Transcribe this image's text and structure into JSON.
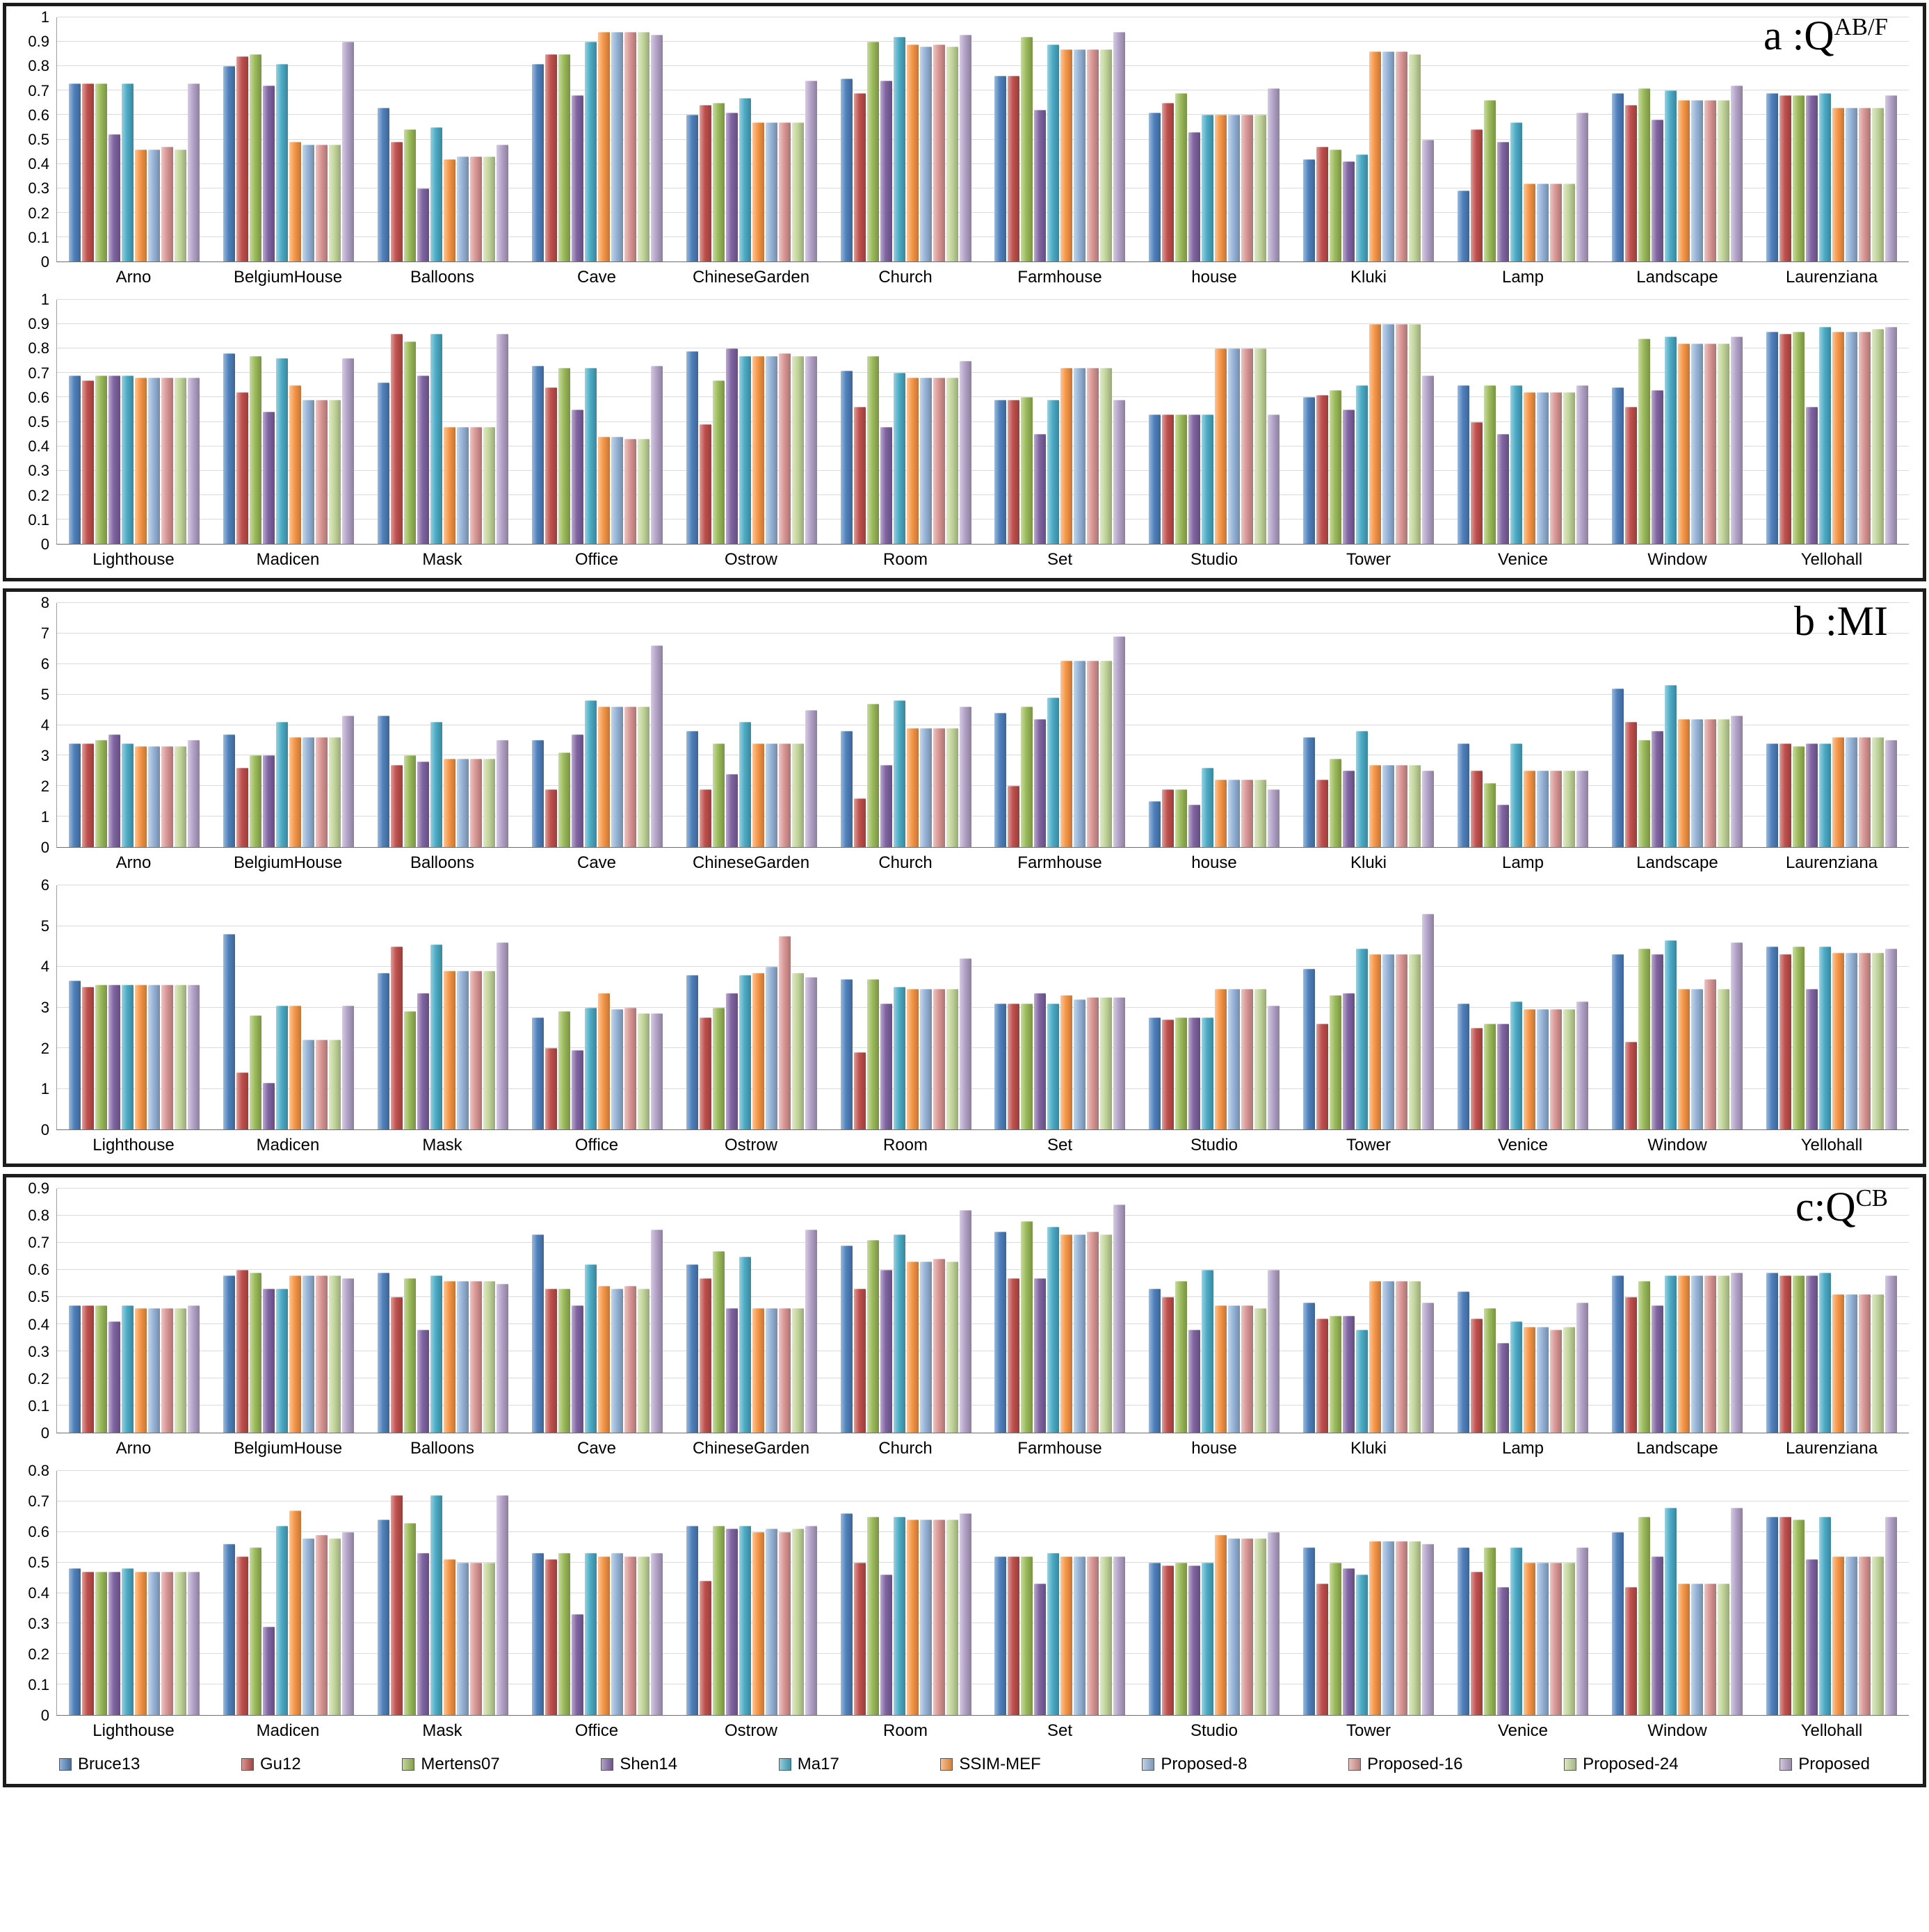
{
  "panels": [
    {
      "title_prefix": "a :Q",
      "title_sup": "AB/F"
    },
    {
      "title_prefix": "b :MI",
      "title_sup": ""
    },
    {
      "title_prefix": "c:Q",
      "title_sup": "CB"
    }
  ],
  "chart_data": {
    "type": "bar",
    "legend_position": "bottom",
    "grid": true,
    "series": [
      {
        "name": "Bruce13",
        "color": "#4F81BD"
      },
      {
        "name": "Gu12",
        "color": "#C0504D"
      },
      {
        "name": "Mertens07",
        "color": "#9BBB59"
      },
      {
        "name": "Shen14",
        "color": "#8064A2"
      },
      {
        "name": "Ma17",
        "color": "#4BACC6"
      },
      {
        "name": "SSIM-MEF",
        "color": "#F79646"
      },
      {
        "name": "Proposed-8",
        "color": "#95B3D7"
      },
      {
        "name": "Proposed-16",
        "color": "#D99694"
      },
      {
        "name": "Proposed-24",
        "color": "#C3D69B"
      },
      {
        "name": "Proposed",
        "color": "#B3A2C7"
      }
    ],
    "charts": [
      {
        "panel": "a",
        "row": 1,
        "metric": "QAB/F",
        "ymax": 1,
        "ystep": 0.1,
        "categories": [
          "Arno",
          "BelgiumHouse",
          "Balloons",
          "Cave",
          "ChineseGarden",
          "Church",
          "Farmhouse",
          "house",
          "Kluki",
          "Lamp",
          "Landscape",
          "Laurenziana"
        ],
        "values": [
          [
            0.73,
            0.8,
            0.63,
            0.81,
            0.6,
            0.75,
            0.76,
            0.61,
            0.42,
            0.29,
            0.69,
            0.69
          ],
          [
            0.73,
            0.84,
            0.49,
            0.85,
            0.64,
            0.69,
            0.76,
            0.65,
            0.47,
            0.54,
            0.64,
            0.68
          ],
          [
            0.73,
            0.85,
            0.54,
            0.85,
            0.65,
            0.9,
            0.92,
            0.69,
            0.46,
            0.66,
            0.71,
            0.68
          ],
          [
            0.52,
            0.72,
            0.3,
            0.68,
            0.61,
            0.74,
            0.62,
            0.53,
            0.41,
            0.49,
            0.58,
            0.68
          ],
          [
            0.73,
            0.81,
            0.55,
            0.9,
            0.67,
            0.92,
            0.89,
            0.6,
            0.44,
            0.57,
            0.7,
            0.69
          ],
          [
            0.46,
            0.49,
            0.42,
            0.94,
            0.57,
            0.89,
            0.87,
            0.6,
            0.86,
            0.32,
            0.66,
            0.63
          ],
          [
            0.46,
            0.48,
            0.43,
            0.94,
            0.57,
            0.88,
            0.87,
            0.6,
            0.86,
            0.32,
            0.66,
            0.63
          ],
          [
            0.47,
            0.48,
            0.43,
            0.94,
            0.57,
            0.89,
            0.87,
            0.6,
            0.86,
            0.32,
            0.66,
            0.63
          ],
          [
            0.46,
            0.48,
            0.43,
            0.94,
            0.57,
            0.88,
            0.87,
            0.6,
            0.85,
            0.32,
            0.66,
            0.63
          ],
          [
            0.73,
            0.9,
            0.48,
            0.93,
            0.74,
            0.93,
            0.94,
            0.71,
            0.5,
            0.61,
            0.72,
            0.68
          ]
        ]
      },
      {
        "panel": "a",
        "row": 2,
        "metric": "QAB/F",
        "ymax": 1,
        "ystep": 0.1,
        "categories": [
          "Lighthouse",
          "Madicen",
          "Mask",
          "Office",
          "Ostrow",
          "Room",
          "Set",
          "Studio",
          "Tower",
          "Venice",
          "Window",
          "Yellohall"
        ],
        "values": [
          [
            0.69,
            0.78,
            0.66,
            0.73,
            0.79,
            0.71,
            0.59,
            0.53,
            0.6,
            0.65,
            0.64,
            0.87
          ],
          [
            0.67,
            0.62,
            0.86,
            0.64,
            0.49,
            0.56,
            0.59,
            0.53,
            0.61,
            0.5,
            0.56,
            0.86
          ],
          [
            0.69,
            0.77,
            0.83,
            0.72,
            0.67,
            0.77,
            0.6,
            0.53,
            0.63,
            0.65,
            0.84,
            0.87
          ],
          [
            0.69,
            0.54,
            0.69,
            0.55,
            0.8,
            0.48,
            0.45,
            0.53,
            0.55,
            0.45,
            0.63,
            0.56
          ],
          [
            0.69,
            0.76,
            0.86,
            0.72,
            0.77,
            0.7,
            0.59,
            0.53,
            0.65,
            0.65,
            0.85,
            0.89
          ],
          [
            0.68,
            0.65,
            0.48,
            0.44,
            0.77,
            0.68,
            0.72,
            0.8,
            0.9,
            0.62,
            0.82,
            0.87
          ],
          [
            0.68,
            0.59,
            0.48,
            0.44,
            0.77,
            0.68,
            0.72,
            0.8,
            0.9,
            0.62,
            0.82,
            0.87
          ],
          [
            0.68,
            0.59,
            0.48,
            0.43,
            0.78,
            0.68,
            0.72,
            0.8,
            0.9,
            0.62,
            0.82,
            0.87
          ],
          [
            0.68,
            0.59,
            0.48,
            0.43,
            0.77,
            0.68,
            0.72,
            0.8,
            0.9,
            0.62,
            0.82,
            0.88
          ],
          [
            0.68,
            0.76,
            0.86,
            0.73,
            0.77,
            0.75,
            0.59,
            0.53,
            0.69,
            0.65,
            0.85,
            0.89
          ]
        ]
      },
      {
        "panel": "b",
        "row": 1,
        "metric": "MI",
        "ymax": 8,
        "ystep": 1,
        "categories": [
          "Arno",
          "BelgiumHouse",
          "Balloons",
          "Cave",
          "ChineseGarden",
          "Church",
          "Farmhouse",
          "house",
          "Kluki",
          "Lamp",
          "Landscape",
          "Laurenziana"
        ],
        "values": [
          [
            3.4,
            3.7,
            4.3,
            3.5,
            3.8,
            3.8,
            4.4,
            1.5,
            3.6,
            3.4,
            5.2,
            3.4
          ],
          [
            3.4,
            2.6,
            2.7,
            1.9,
            1.9,
            1.6,
            2.0,
            1.9,
            2.2,
            2.5,
            4.1,
            3.4
          ],
          [
            3.5,
            3.0,
            3.0,
            3.1,
            3.4,
            4.7,
            4.6,
            1.9,
            2.9,
            2.1,
            3.5,
            3.3
          ],
          [
            3.7,
            3.0,
            2.8,
            3.7,
            2.4,
            2.7,
            4.2,
            1.4,
            2.5,
            1.4,
            3.8,
            3.4
          ],
          [
            3.4,
            4.1,
            4.1,
            4.8,
            4.1,
            4.8,
            4.9,
            2.6,
            3.8,
            3.4,
            5.3,
            3.4
          ],
          [
            3.3,
            3.6,
            2.9,
            4.6,
            3.4,
            3.9,
            6.1,
            2.2,
            2.7,
            2.5,
            4.2,
            3.6
          ],
          [
            3.3,
            3.6,
            2.9,
            4.6,
            3.4,
            3.9,
            6.1,
            2.2,
            2.7,
            2.5,
            4.2,
            3.6
          ],
          [
            3.3,
            3.6,
            2.9,
            4.6,
            3.4,
            3.9,
            6.1,
            2.2,
            2.7,
            2.5,
            4.2,
            3.6
          ],
          [
            3.3,
            3.6,
            2.9,
            4.6,
            3.4,
            3.9,
            6.1,
            2.2,
            2.7,
            2.5,
            4.2,
            3.6
          ],
          [
            3.5,
            4.3,
            3.5,
            6.6,
            4.5,
            4.6,
            6.9,
            1.9,
            2.5,
            2.5,
            4.3,
            3.5
          ]
        ]
      },
      {
        "panel": "b",
        "row": 2,
        "metric": "MI",
        "ymax": 6,
        "ystep": 1,
        "categories": [
          "Lighthouse",
          "Madicen",
          "Mask",
          "Office",
          "Ostrow",
          "Room",
          "Set",
          "Studio",
          "Tower",
          "Venice",
          "Window",
          "Yellohall"
        ],
        "values": [
          [
            3.65,
            4.8,
            3.85,
            2.75,
            3.8,
            3.7,
            3.1,
            2.75,
            3.95,
            3.1,
            4.3,
            4.5
          ],
          [
            3.5,
            1.4,
            4.5,
            2.0,
            2.75,
            1.9,
            3.1,
            2.7,
            2.6,
            2.5,
            2.15,
            4.3
          ],
          [
            3.55,
            2.8,
            2.9,
            2.9,
            3.0,
            3.7,
            3.1,
            2.75,
            3.3,
            2.6,
            4.45,
            4.5
          ],
          [
            3.55,
            1.15,
            3.35,
            1.95,
            3.35,
            3.1,
            3.35,
            2.75,
            3.35,
            2.6,
            4.3,
            3.45
          ],
          [
            3.55,
            3.05,
            4.55,
            3.0,
            3.8,
            3.5,
            3.1,
            2.75,
            4.45,
            3.15,
            4.65,
            4.5
          ],
          [
            3.55,
            3.05,
            3.9,
            3.35,
            3.85,
            3.45,
            3.3,
            3.45,
            4.3,
            2.95,
            3.45,
            4.35
          ],
          [
            3.55,
            2.2,
            3.9,
            2.95,
            4.0,
            3.45,
            3.2,
            3.45,
            4.3,
            2.95,
            3.45,
            4.35
          ],
          [
            3.55,
            2.2,
            3.9,
            3.0,
            4.75,
            3.45,
            3.25,
            3.45,
            4.3,
            2.95,
            3.7,
            4.35
          ],
          [
            3.55,
            2.2,
            3.9,
            2.85,
            3.85,
            3.45,
            3.25,
            3.45,
            4.3,
            2.95,
            3.45,
            4.35
          ],
          [
            3.55,
            3.05,
            4.6,
            2.85,
            3.75,
            4.2,
            3.25,
            3.05,
            5.3,
            3.15,
            4.6,
            4.45
          ]
        ]
      },
      {
        "panel": "c",
        "row": 1,
        "metric": "QCB",
        "ymax": 0.9,
        "ystep": 0.1,
        "categories": [
          "Arno",
          "BelgiumHouse",
          "Balloons",
          "Cave",
          "ChineseGarden",
          "Church",
          "Farmhouse",
          "house",
          "Kluki",
          "Lamp",
          "Landscape",
          "Laurenziana"
        ],
        "values": [
          [
            0.47,
            0.58,
            0.59,
            0.73,
            0.62,
            0.69,
            0.74,
            0.53,
            0.48,
            0.52,
            0.58,
            0.59
          ],
          [
            0.47,
            0.6,
            0.5,
            0.53,
            0.57,
            0.53,
            0.57,
            0.5,
            0.42,
            0.42,
            0.5,
            0.58
          ],
          [
            0.47,
            0.59,
            0.57,
            0.53,
            0.67,
            0.71,
            0.78,
            0.56,
            0.43,
            0.46,
            0.56,
            0.58
          ],
          [
            0.41,
            0.53,
            0.38,
            0.47,
            0.46,
            0.6,
            0.57,
            0.38,
            0.43,
            0.33,
            0.47,
            0.58
          ],
          [
            0.47,
            0.53,
            0.58,
            0.62,
            0.65,
            0.73,
            0.76,
            0.6,
            0.38,
            0.41,
            0.58,
            0.59
          ],
          [
            0.46,
            0.58,
            0.56,
            0.54,
            0.46,
            0.63,
            0.73,
            0.47,
            0.56,
            0.39,
            0.58,
            0.51
          ],
          [
            0.46,
            0.58,
            0.56,
            0.53,
            0.46,
            0.63,
            0.73,
            0.47,
            0.56,
            0.39,
            0.58,
            0.51
          ],
          [
            0.46,
            0.58,
            0.56,
            0.54,
            0.46,
            0.64,
            0.74,
            0.47,
            0.56,
            0.38,
            0.58,
            0.51
          ],
          [
            0.46,
            0.58,
            0.56,
            0.53,
            0.46,
            0.63,
            0.73,
            0.46,
            0.56,
            0.39,
            0.58,
            0.51
          ],
          [
            0.47,
            0.57,
            0.55,
            0.75,
            0.75,
            0.82,
            0.84,
            0.6,
            0.48,
            0.48,
            0.59,
            0.58
          ]
        ]
      },
      {
        "panel": "c",
        "row": 2,
        "metric": "QCB",
        "ymax": 0.8,
        "ystep": 0.1,
        "categories": [
          "Lighthouse",
          "Madicen",
          "Mask",
          "Office",
          "Ostrow",
          "Room",
          "Set",
          "Studio",
          "Tower",
          "Venice",
          "Window",
          "Yellohall"
        ],
        "values": [
          [
            0.48,
            0.56,
            0.64,
            0.53,
            0.62,
            0.66,
            0.52,
            0.5,
            0.55,
            0.55,
            0.6,
            0.65
          ],
          [
            0.47,
            0.52,
            0.72,
            0.51,
            0.44,
            0.5,
            0.52,
            0.49,
            0.43,
            0.47,
            0.42,
            0.65
          ],
          [
            0.47,
            0.55,
            0.63,
            0.53,
            0.62,
            0.65,
            0.52,
            0.5,
            0.5,
            0.55,
            0.65,
            0.64
          ],
          [
            0.47,
            0.29,
            0.53,
            0.33,
            0.61,
            0.46,
            0.43,
            0.49,
            0.48,
            0.42,
            0.52,
            0.51
          ],
          [
            0.48,
            0.62,
            0.72,
            0.53,
            0.62,
            0.65,
            0.53,
            0.5,
            0.46,
            0.55,
            0.68,
            0.65
          ],
          [
            0.47,
            0.67,
            0.51,
            0.52,
            0.6,
            0.64,
            0.52,
            0.59,
            0.57,
            0.5,
            0.43,
            0.52
          ],
          [
            0.47,
            0.58,
            0.5,
            0.53,
            0.61,
            0.64,
            0.52,
            0.58,
            0.57,
            0.5,
            0.43,
            0.52
          ],
          [
            0.47,
            0.59,
            0.5,
            0.52,
            0.6,
            0.64,
            0.52,
            0.58,
            0.57,
            0.5,
            0.43,
            0.52
          ],
          [
            0.47,
            0.58,
            0.5,
            0.52,
            0.61,
            0.64,
            0.52,
            0.58,
            0.57,
            0.5,
            0.43,
            0.52
          ],
          [
            0.47,
            0.6,
            0.72,
            0.53,
            0.62,
            0.66,
            0.52,
            0.6,
            0.56,
            0.55,
            0.68,
            0.65
          ]
        ]
      }
    ]
  }
}
